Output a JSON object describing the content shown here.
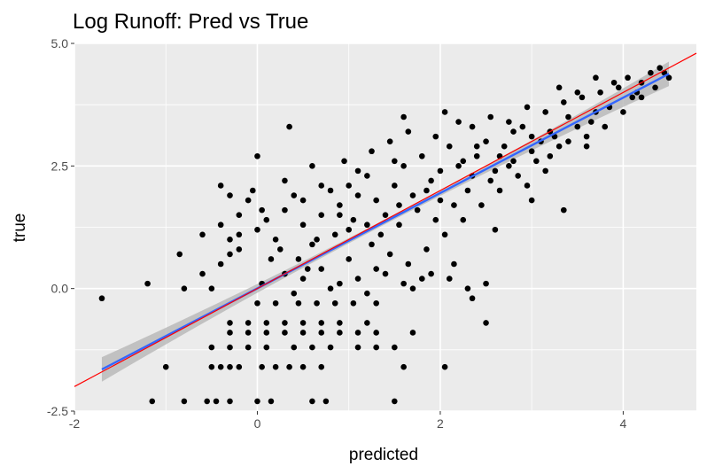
{
  "chart_data": {
    "type": "scatter",
    "title": "Log Runoff: Pred vs True",
    "xlabel": "predicted",
    "ylabel": "true",
    "xlim": [
      -2.0,
      4.8
    ],
    "ylim": [
      -2.5,
      5.0
    ],
    "x_ticks": [
      -2,
      0,
      2,
      4
    ],
    "x_tick_labels": [
      "-2",
      "0",
      "2",
      "4"
    ],
    "y_ticks": [
      -2.5,
      0.0,
      2.5,
      5.0
    ],
    "y_tick_labels": [
      "-2.5",
      "0.0",
      "2.5",
      "5.0"
    ],
    "grid": true,
    "colors": {
      "panel": "#EBEBEB",
      "grid": "#FFFFFF",
      "points": "#000000",
      "fit_line": "#3366FF",
      "ribbon": "#B3B3B3",
      "identity_line": "#FF0000"
    },
    "fit_line": {
      "x": [
        -1.7,
        4.5
      ],
      "y": [
        -1.65,
        4.38
      ],
      "ribbon_halfwidth_ends": 0.25,
      "ribbon_halfwidth_mid": 0.05
    },
    "identity_line": {
      "slope": 1,
      "intercept": 0
    },
    "points": [
      [
        -1.7,
        -0.2
      ],
      [
        -1.15,
        -2.3
      ],
      [
        -1.0,
        -1.6
      ],
      [
        -0.85,
        0.7
      ],
      [
        -0.8,
        -2.3
      ],
      [
        -0.55,
        -2.3
      ],
      [
        -0.45,
        -2.3
      ],
      [
        -0.3,
        -2.3
      ],
      [
        0.0,
        -2.3
      ],
      [
        0.15,
        -2.3
      ],
      [
        0.6,
        -2.3
      ],
      [
        0.75,
        -2.3
      ],
      [
        1.5,
        -2.3
      ],
      [
        -0.5,
        -1.6
      ],
      [
        -0.4,
        -1.6
      ],
      [
        -0.3,
        -1.6
      ],
      [
        -0.2,
        -1.6
      ],
      [
        0.05,
        -1.6
      ],
      [
        0.2,
        -1.6
      ],
      [
        0.35,
        -1.6
      ],
      [
        0.5,
        -1.6
      ],
      [
        0.7,
        -1.6
      ],
      [
        1.6,
        -1.6
      ],
      [
        2.05,
        -1.6
      ],
      [
        -0.5,
        -1.2
      ],
      [
        -0.3,
        -1.2
      ],
      [
        -0.1,
        -1.2
      ],
      [
        0.1,
        -1.2
      ],
      [
        0.4,
        -1.2
      ],
      [
        0.6,
        -1.2
      ],
      [
        0.8,
        -1.2
      ],
      [
        1.1,
        -1.2
      ],
      [
        1.3,
        -1.2
      ],
      [
        1.5,
        -1.2
      ],
      [
        -0.3,
        -0.9
      ],
      [
        -0.1,
        -0.9
      ],
      [
        0.1,
        -0.9
      ],
      [
        0.3,
        -0.9
      ],
      [
        0.5,
        -0.9
      ],
      [
        0.7,
        -0.9
      ],
      [
        0.9,
        -0.9
      ],
      [
        1.1,
        -0.9
      ],
      [
        1.3,
        -0.9
      ],
      [
        1.7,
        -0.9
      ],
      [
        -0.3,
        -0.7
      ],
      [
        -0.1,
        -0.7
      ],
      [
        0.1,
        -0.7
      ],
      [
        0.3,
        -0.7
      ],
      [
        0.5,
        -0.7
      ],
      [
        0.7,
        -0.7
      ],
      [
        0.9,
        -0.7
      ],
      [
        1.2,
        -0.7
      ],
      [
        2.5,
        -0.7
      ],
      [
        0.0,
        -0.3
      ],
      [
        0.2,
        -0.3
      ],
      [
        0.45,
        -0.3
      ],
      [
        0.65,
        -0.3
      ],
      [
        0.85,
        -0.3
      ],
      [
        1.05,
        -0.3
      ],
      [
        1.3,
        -0.3
      ],
      [
        -1.2,
        0.1
      ],
      [
        -0.8,
        0.0
      ],
      [
        -0.6,
        0.3
      ],
      [
        -0.5,
        0.0
      ],
      [
        -0.4,
        0.5
      ],
      [
        -0.3,
        0.7
      ],
      [
        0.05,
        0.1
      ],
      [
        0.3,
        0.3
      ],
      [
        0.5,
        0.2
      ],
      [
        0.7,
        0.4
      ],
      [
        0.9,
        0.1
      ],
      [
        1.1,
        0.2
      ],
      [
        1.3,
        0.4
      ],
      [
        1.6,
        0.1
      ],
      [
        1.9,
        0.3
      ],
      [
        2.1,
        0.2
      ],
      [
        2.3,
        0.0
      ],
      [
        2.5,
        0.1
      ],
      [
        -0.4,
        2.1
      ],
      [
        -0.3,
        1.9
      ],
      [
        -0.2,
        1.5
      ],
      [
        -0.1,
        1.8
      ],
      [
        -0.05,
        2.0
      ],
      [
        0.05,
        1.6
      ],
      [
        -0.4,
        1.3
      ],
      [
        -0.3,
        1.0
      ],
      [
        -0.2,
        0.8
      ],
      [
        0.0,
        1.2
      ],
      [
        0.2,
        1.0
      ],
      [
        0.3,
        1.6
      ],
      [
        0.4,
        1.9
      ],
      [
        0.5,
        1.3
      ],
      [
        0.6,
        0.9
      ],
      [
        0.7,
        1.5
      ],
      [
        0.8,
        2.0
      ],
      [
        0.9,
        1.7
      ],
      [
        1.0,
        1.2
      ],
      [
        1.1,
        1.9
      ],
      [
        1.2,
        2.3
      ],
      [
        1.3,
        1.8
      ],
      [
        1.4,
        1.5
      ],
      [
        1.5,
        2.1
      ],
      [
        1.6,
        2.5
      ],
      [
        1.7,
        1.9
      ],
      [
        1.8,
        2.7
      ],
      [
        1.9,
        2.2
      ],
      [
        2.0,
        1.8
      ],
      [
        2.1,
        2.9
      ],
      [
        2.2,
        2.5
      ],
      [
        2.3,
        2.0
      ],
      [
        2.4,
        2.7
      ],
      [
        2.5,
        3.0
      ],
      [
        2.6,
        2.4
      ],
      [
        2.7,
        2.9
      ],
      [
        2.8,
        2.6
      ],
      [
        2.9,
        3.3
      ],
      [
        3.0,
        2.8
      ],
      [
        3.1,
        3.0
      ],
      [
        3.2,
        3.2
      ],
      [
        3.3,
        2.9
      ],
      [
        3.4,
        3.5
      ],
      [
        3.5,
        3.3
      ],
      [
        0.0,
        2.7
      ],
      [
        0.3,
        2.2
      ],
      [
        0.6,
        2.5
      ],
      [
        0.95,
        2.6
      ],
      [
        1.25,
        2.8
      ],
      [
        1.45,
        3.0
      ],
      [
        1.65,
        3.2
      ],
      [
        1.95,
        3.1
      ],
      [
        2.05,
        3.6
      ],
      [
        2.35,
        3.3
      ],
      [
        2.55,
        3.5
      ],
      [
        2.75,
        3.4
      ],
      [
        2.95,
        3.7
      ],
      [
        3.15,
        3.6
      ],
      [
        3.35,
        3.8
      ],
      [
        3.55,
        3.9
      ],
      [
        3.75,
        4.0
      ],
      [
        3.95,
        4.1
      ],
      [
        4.05,
        4.3
      ],
      [
        4.2,
        4.2
      ],
      [
        4.3,
        4.4
      ],
      [
        4.4,
        4.5
      ],
      [
        4.5,
        4.3
      ],
      [
        4.1,
        3.9
      ],
      [
        3.85,
        3.7
      ],
      [
        3.65,
        3.4
      ],
      [
        3.25,
        3.1
      ],
      [
        3.05,
        2.6
      ],
      [
        2.85,
        2.3
      ],
      [
        2.65,
        2.0
      ],
      [
        2.45,
        1.7
      ],
      [
        2.25,
        1.4
      ],
      [
        2.05,
        1.1
      ],
      [
        1.85,
        0.8
      ],
      [
        1.65,
        0.5
      ],
      [
        1.45,
        0.7
      ],
      [
        1.25,
        0.9
      ],
      [
        1.05,
        1.4
      ],
      [
        0.85,
        1.1
      ],
      [
        0.65,
        1.0
      ],
      [
        0.45,
        0.6
      ],
      [
        0.25,
        0.8
      ],
      [
        0.1,
        1.4
      ],
      [
        1.35,
        1.1
      ],
      [
        1.55,
        1.3
      ],
      [
        1.75,
        1.6
      ],
      [
        1.95,
        1.4
      ],
      [
        2.15,
        1.7
      ],
      [
        2.35,
        2.3
      ],
      [
        2.55,
        2.2
      ],
      [
        2.75,
        2.5
      ],
      [
        2.95,
        2.1
      ],
      [
        3.15,
        2.4
      ],
      [
        3.35,
        1.6
      ],
      [
        3.6,
        3.1
      ],
      [
        3.8,
        3.3
      ],
      [
        4.0,
        3.6
      ],
      [
        4.2,
        3.9
      ],
      [
        4.35,
        4.1
      ],
      [
        4.45,
        4.4
      ],
      [
        3.9,
        4.2
      ],
      [
        3.7,
        4.3
      ],
      [
        3.5,
        4.0
      ],
      [
        3.3,
        4.1
      ],
      [
        0.35,
        3.3
      ],
      [
        1.6,
        3.5
      ],
      [
        2.2,
        3.4
      ],
      [
        2.8,
        3.2
      ],
      [
        2.4,
        2.9
      ],
      [
        2.0,
        2.4
      ],
      [
        1.5,
        2.6
      ],
      [
        1.1,
        2.4
      ],
      [
        0.7,
        2.1
      ],
      [
        0.5,
        1.8
      ],
      [
        0.9,
        1.5
      ],
      [
        1.2,
        1.3
      ],
      [
        1.55,
        1.7
      ],
      [
        1.85,
        2.0
      ],
      [
        2.25,
        2.6
      ],
      [
        2.65,
        2.7
      ],
      [
        3.0,
        3.1
      ],
      [
        3.4,
        3.0
      ],
      [
        3.7,
        3.6
      ],
      [
        4.15,
        4.0
      ],
      [
        -0.6,
        1.1
      ],
      [
        -0.2,
        1.1
      ],
      [
        0.15,
        0.6
      ],
      [
        0.55,
        0.4
      ],
      [
        1.0,
        0.6
      ],
      [
        1.4,
        0.3
      ],
      [
        1.8,
        0.2
      ],
      [
        2.15,
        0.5
      ],
      [
        2.6,
        1.2
      ],
      [
        3.0,
        1.8
      ],
      [
        3.2,
        2.7
      ],
      [
        3.6,
        2.9
      ],
      [
        0.4,
        -0.1
      ],
      [
        0.8,
        0.0
      ],
      [
        1.2,
        -0.1
      ],
      [
        1.7,
        0.0
      ],
      [
        2.35,
        -0.2
      ],
      [
        1.0,
        2.1
      ]
    ]
  }
}
